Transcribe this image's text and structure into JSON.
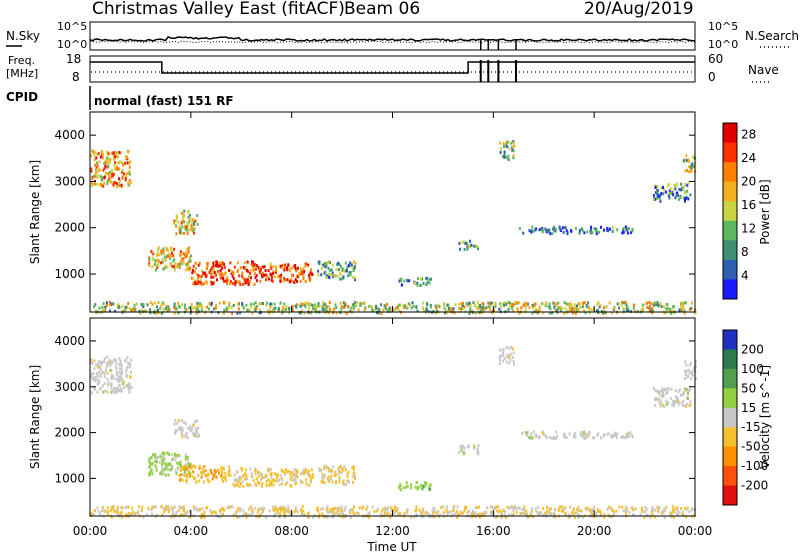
{
  "header": {
    "title": "Christmas Valley East (fitACF)",
    "beam": "Beam 06",
    "date": "20/Aug/2019"
  },
  "status_panels": {
    "nsky_label": "N.Sky",
    "nsearch_label": "N.Search",
    "freq_label_1": "Freq.",
    "freq_label_2": "[MHz]",
    "nave_label": "Nave",
    "cpid_label": "CPID",
    "cpid_value": "normal (fast) 151 RF",
    "left_ticks_top": [
      "10^5",
      "10^0"
    ],
    "right_ticks_top": [
      "10^5",
      "10^0"
    ],
    "left_ticks_freq": [
      "18",
      "8"
    ],
    "right_ticks_nave": [
      "60",
      "0"
    ]
  },
  "colors": {
    "power_scale": [
      "#1a1aff",
      "#2e5fb0",
      "#3f8f73",
      "#5eb85e",
      "#c8d440",
      "#f2b020",
      "#ff8000",
      "#ff3000",
      "#e00000"
    ],
    "velocity_scale": [
      "#2030c0",
      "#2e7a50",
      "#50a050",
      "#90d040",
      "#c8c8c8",
      "#f5c030",
      "#ff9000",
      "#ff5010",
      "#e01010"
    ]
  },
  "chart_data": [
    {
      "type": "heatmap",
      "name": "power",
      "xlabel": "",
      "ylabel": "Slant Range [km]",
      "xlim": [
        "00:00",
        "24:00"
      ],
      "ylim": [
        180,
        4500
      ],
      "y_ticks": [
        "1000",
        "2000",
        "3000",
        "4000"
      ],
      "colorbar_label": "Power [dB]",
      "colorbar_ticks": [
        "4",
        "8",
        "12",
        "16",
        "20",
        "24",
        "28"
      ],
      "colorbar_range": [
        0,
        30
      ],
      "regions": [
        {
          "t0": 0.0,
          "t1": 1.6,
          "r0": 2900,
          "r1": 3700,
          "value": 20
        },
        {
          "t0": 2.3,
          "t1": 4.0,
          "r0": 1100,
          "r1": 1600,
          "value": 18
        },
        {
          "t0": 4.0,
          "t1": 6.5,
          "r0": 800,
          "r1": 1300,
          "value": 24
        },
        {
          "t0": 6.5,
          "t1": 8.8,
          "r0": 850,
          "r1": 1250,
          "value": 25
        },
        {
          "t0": 3.3,
          "t1": 4.3,
          "r0": 1900,
          "r1": 2400,
          "value": 16
        },
        {
          "t0": 9.0,
          "t1": 10.5,
          "r0": 900,
          "r1": 1300,
          "value": 10
        },
        {
          "t0": 12.2,
          "t1": 13.5,
          "r0": 780,
          "r1": 950,
          "value": 8
        },
        {
          "t0": 14.6,
          "t1": 15.4,
          "r0": 1550,
          "r1": 1750,
          "value": 10
        },
        {
          "t0": 16.2,
          "t1": 16.8,
          "r0": 3500,
          "r1": 3900,
          "value": 12
        },
        {
          "t0": 17.0,
          "t1": 21.5,
          "r0": 1900,
          "r1": 2050,
          "value": 6
        },
        {
          "t0": 22.3,
          "t1": 23.8,
          "r0": 2600,
          "r1": 3000,
          "value": 8
        },
        {
          "t0": 23.5,
          "t1": 24.0,
          "r0": 3200,
          "r1": 3600,
          "value": 14
        },
        {
          "t0": 0.0,
          "t1": 24.0,
          "r0": 180,
          "r1": 420,
          "value": 14
        }
      ]
    },
    {
      "type": "heatmap",
      "name": "velocity",
      "xlabel": "Time UT",
      "ylabel": "Slant Range [km]",
      "xlim": [
        "00:00",
        "24:00"
      ],
      "ylim": [
        180,
        4500
      ],
      "x_ticks": [
        "00:00",
        "04:00",
        "08:00",
        "12:00",
        "16:00",
        "20:00",
        "00:00"
      ],
      "y_ticks": [
        "1000",
        "2000",
        "3000",
        "4000"
      ],
      "colorbar_label": "Velocity [m s^-1]",
      "colorbar_ticks": [
        "200",
        "100",
        "50",
        "15",
        "-15",
        "-50",
        "-100",
        "-200"
      ],
      "colorbar_range": [
        -250,
        250
      ],
      "regions": [
        {
          "t0": 0.0,
          "t1": 1.6,
          "r0": 2900,
          "r1": 3700,
          "value": 0
        },
        {
          "t0": 2.3,
          "t1": 4.0,
          "r0": 1100,
          "r1": 1600,
          "value": 40
        },
        {
          "t0": 3.5,
          "t1": 5.5,
          "r0": 950,
          "r1": 1300,
          "value": -70
        },
        {
          "t0": 5.5,
          "t1": 8.8,
          "r0": 850,
          "r1": 1250,
          "value": -40
        },
        {
          "t0": 3.3,
          "t1": 4.3,
          "r0": 1900,
          "r1": 2300,
          "value": 0
        },
        {
          "t0": 9.0,
          "t1": 10.5,
          "r0": 900,
          "r1": 1300,
          "value": -30
        },
        {
          "t0": 12.2,
          "t1": 13.5,
          "r0": 780,
          "r1": 950,
          "value": 60
        },
        {
          "t0": 14.6,
          "t1": 15.4,
          "r0": 1550,
          "r1": 1750,
          "value": 0
        },
        {
          "t0": 16.2,
          "t1": 16.8,
          "r0": 3500,
          "r1": 3900,
          "value": 0
        },
        {
          "t0": 17.0,
          "t1": 21.5,
          "r0": 1900,
          "r1": 2050,
          "value": 0
        },
        {
          "t0": 22.3,
          "t1": 23.8,
          "r0": 2600,
          "r1": 3000,
          "value": 0
        },
        {
          "t0": 23.5,
          "t1": 24.0,
          "r0": 3200,
          "r1": 3600,
          "value": 0
        },
        {
          "t0": 0.0,
          "t1": 24.0,
          "r0": 180,
          "r1": 420,
          "value": -30
        }
      ]
    }
  ]
}
